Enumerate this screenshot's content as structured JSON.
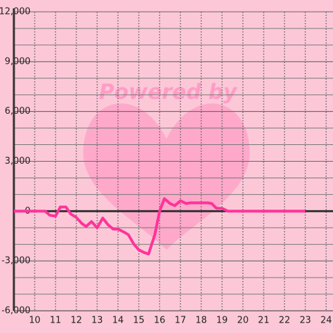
{
  "chart_data": {
    "type": "line",
    "watermark": "Powered by",
    "x": [
      9,
      10.5,
      10.73,
      11,
      11.23,
      11.5,
      11.73,
      12,
      12.27,
      12.47,
      12.73,
      13,
      13.27,
      13.53,
      13.77,
      14,
      14.27,
      14.5,
      14.77,
      15,
      15.27,
      15.47,
      15.77,
      16,
      16.23,
      16.5,
      16.73,
      17,
      17.27,
      17.5,
      18.33,
      18.5,
      18.73,
      19,
      19.27,
      23
    ],
    "series": [
      {
        "color": "#ff3399",
        "values": [
          0,
          0,
          -250,
          -300,
          250,
          250,
          -170,
          -380,
          -750,
          -920,
          -630,
          -1000,
          -420,
          -830,
          -1080,
          -1080,
          -1250,
          -1420,
          -2000,
          -2330,
          -2500,
          -2580,
          -1420,
          0,
          750,
          460,
          330,
          620,
          460,
          500,
          500,
          460,
          170,
          170,
          0,
          0
        ]
      }
    ],
    "xlim": [
      9,
      24.33
    ],
    "xticks": [
      10,
      11,
      12,
      13,
      14,
      15,
      16,
      17,
      18,
      19,
      20,
      21,
      22,
      23,
      24
    ],
    "ylim": [
      -6000,
      12000
    ],
    "yticks": [
      {
        "value": -6000,
        "label": "-6,000"
      },
      {
        "value": -3000,
        "label": "-3,000"
      },
      0,
      {
        "value": 3000,
        "label": "3,000"
      },
      {
        "value": 6000,
        "label": "6,000"
      },
      {
        "value": 9000,
        "label": "9,000"
      },
      {
        "value": 12000,
        "label": "12,000"
      }
    ],
    "ygrid": [
      -5000,
      -4000,
      -3000,
      -2000,
      -1000,
      1000,
      2000,
      3000,
      4000,
      5000,
      6000,
      7000,
      8000,
      9000,
      10000,
      11000
    ],
    "grid": true
  }
}
